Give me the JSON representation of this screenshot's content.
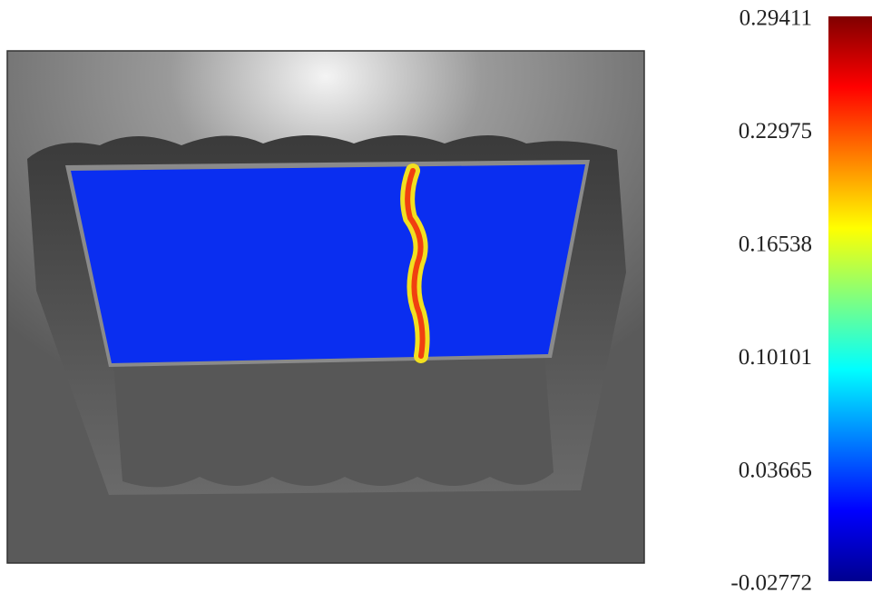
{
  "colorbar": {
    "colormap": "jet",
    "lim": [
      -0.02772,
      0.29411
    ],
    "ticks": [
      0.29411,
      0.22975,
      0.16538,
      0.10101,
      0.03665,
      -0.02772
    ]
  }
}
